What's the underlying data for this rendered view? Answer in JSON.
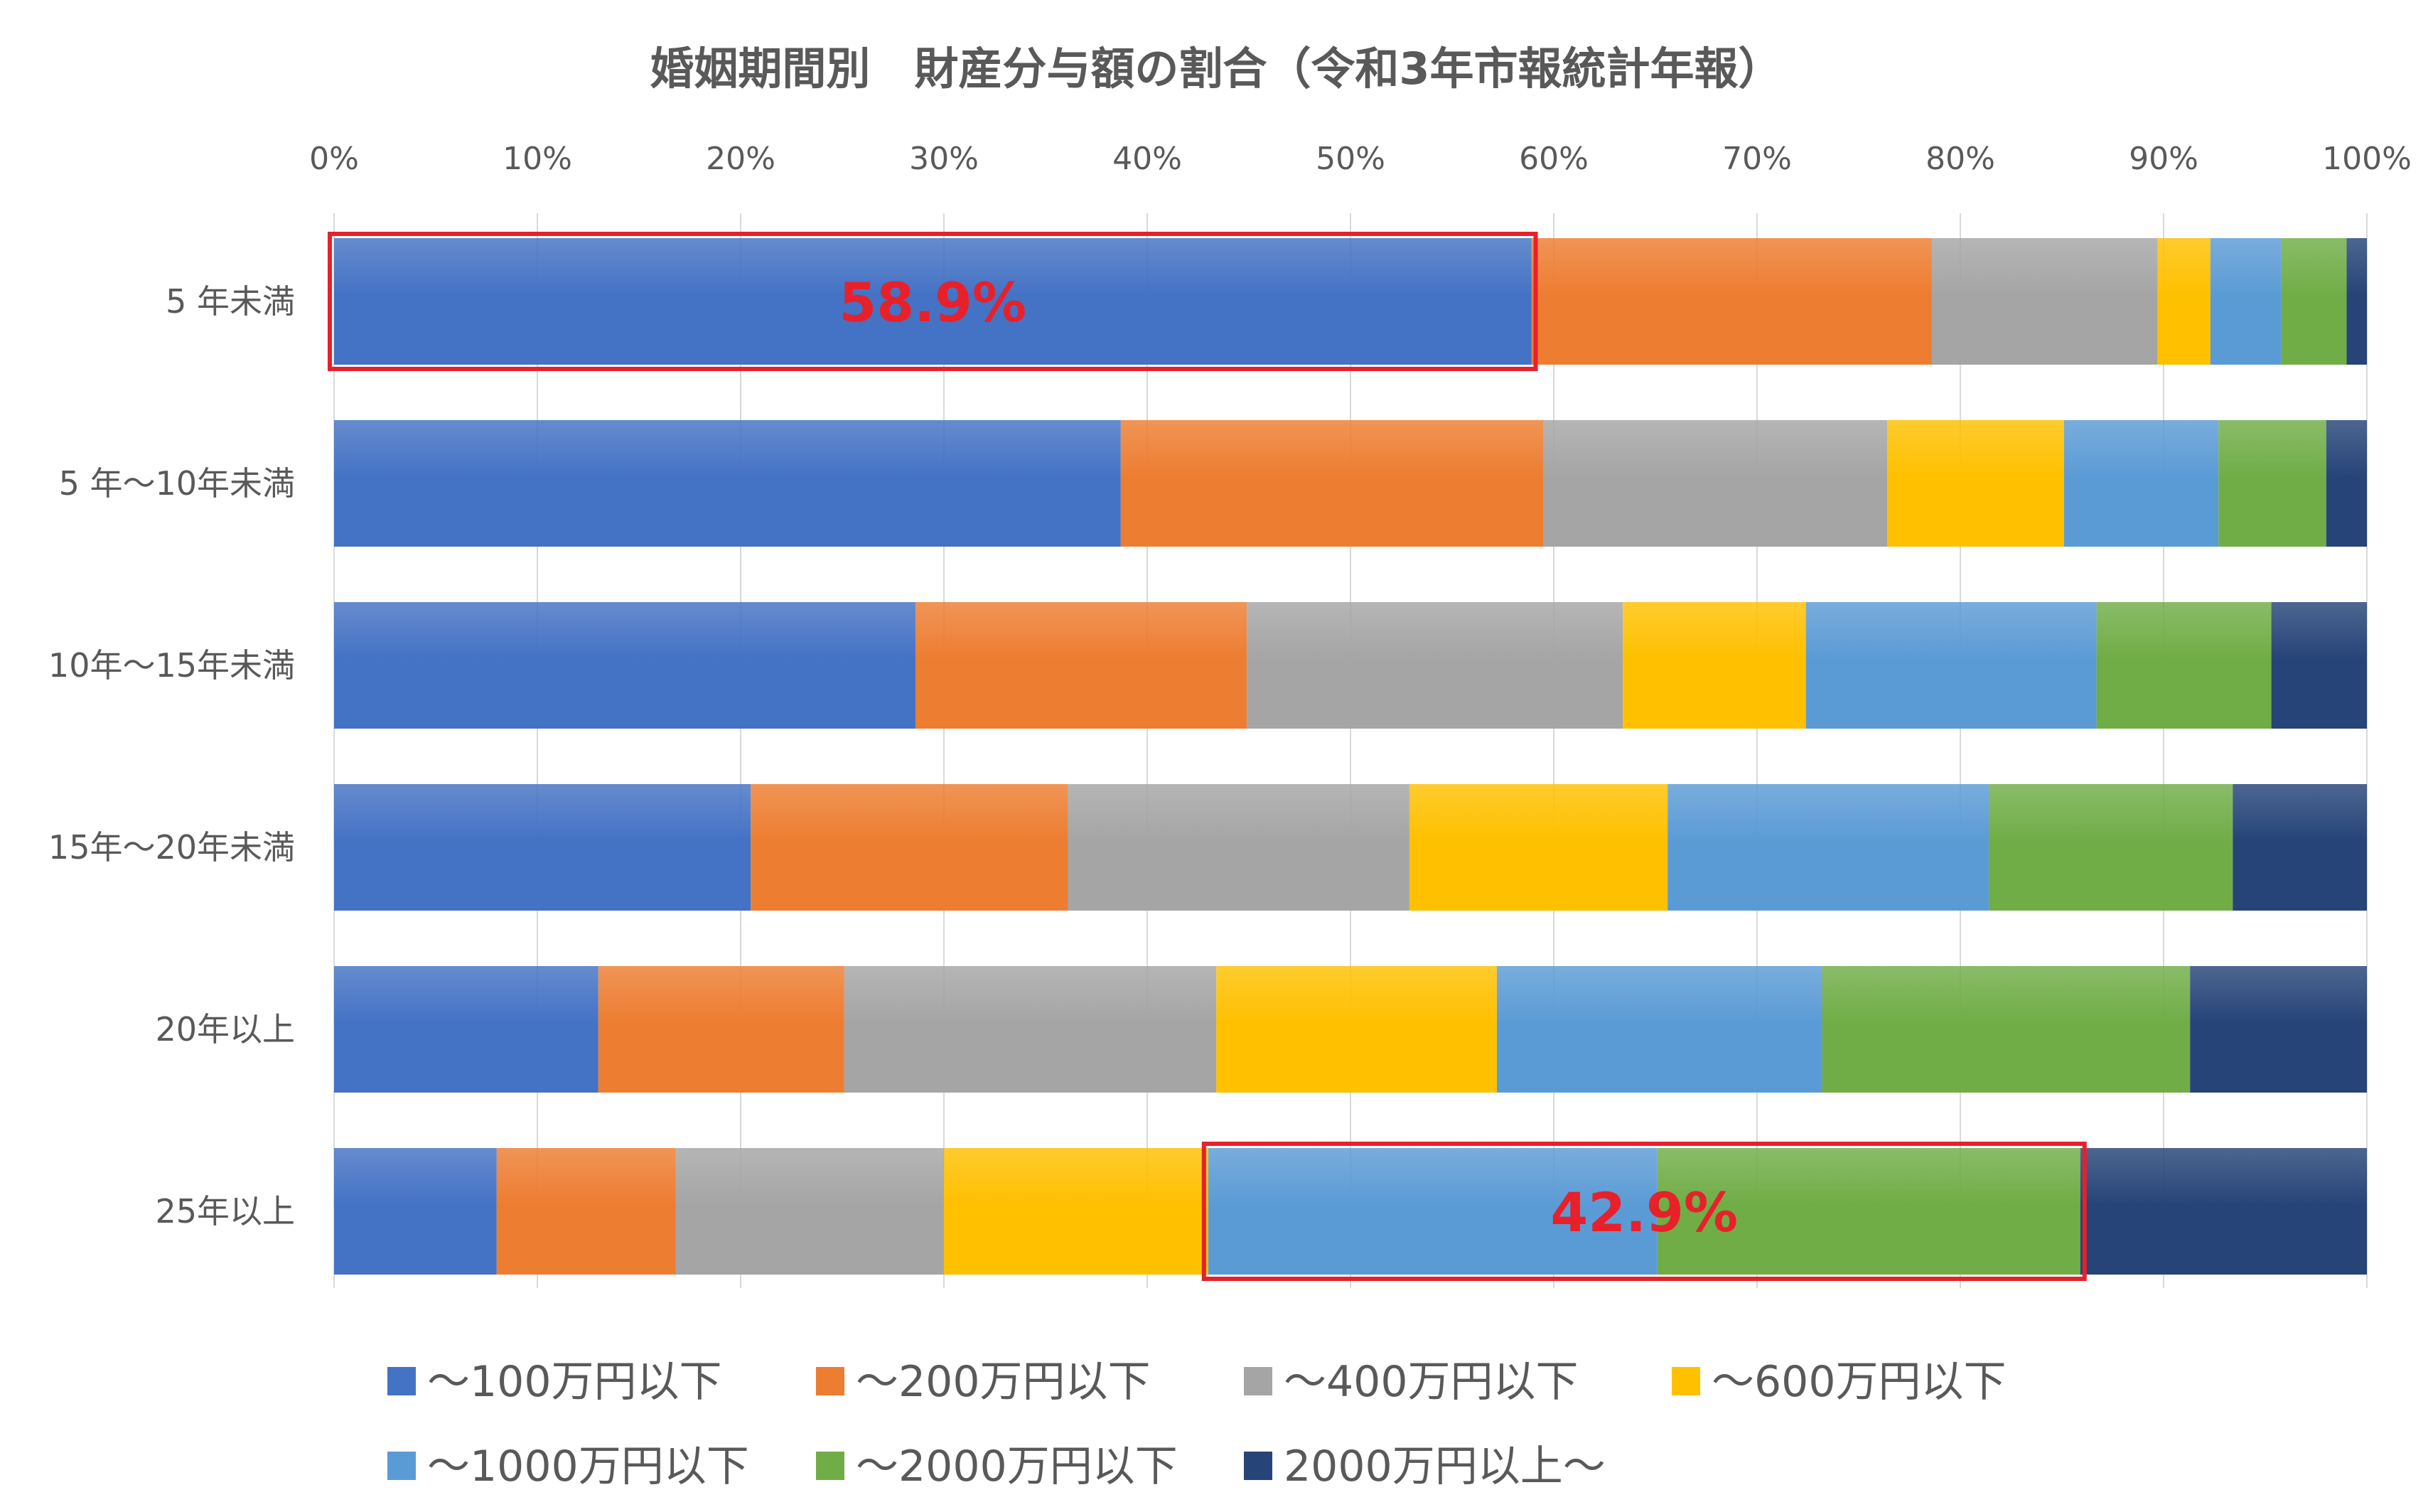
{
  "chart_data": {
    "type": "bar",
    "orientation": "horizontal",
    "stacked": "percent",
    "title": "婚姻期間別　財産分与額の割合（令和3年市報統計年報）",
    "xlim": [
      0,
      100
    ],
    "x_ticks": [
      "0%",
      "10%",
      "20%",
      "30%",
      "40%",
      "50%",
      "60%",
      "70%",
      "80%",
      "90%",
      "100%"
    ],
    "grid": true,
    "legend_position": "bottom",
    "categories": [
      "5 年未満",
      "5 年～10年未満",
      "10年～15年未満",
      "15年～20年未満",
      "20年以上",
      "25年以上"
    ],
    "series": [
      {
        "name": "～100万円以下",
        "color": "#4472C4",
        "values": [
          58.9,
          38.7,
          28.6,
          20.5,
          13.0,
          8.0
        ]
      },
      {
        "name": "～200万円以下",
        "color": "#ED7D31",
        "values": [
          19.7,
          20.8,
          16.3,
          15.6,
          12.1,
          8.8
        ]
      },
      {
        "name": "～400万円以下",
        "color": "#A5A5A5",
        "values": [
          11.1,
          16.9,
          18.5,
          16.8,
          18.3,
          13.2
        ]
      },
      {
        "name": "～600万円以下",
        "color": "#FFC000",
        "values": [
          2.6,
          8.7,
          9.0,
          12.7,
          13.8,
          13.0
        ]
      },
      {
        "name": "～1000万円以下",
        "color": "#5B9BD5",
        "values": [
          3.5,
          7.6,
          14.3,
          15.8,
          16.0,
          22.1
        ]
      },
      {
        "name": "～2000万円以下",
        "color": "#70AD47",
        "values": [
          3.2,
          5.3,
          8.6,
          12.0,
          18.1,
          20.8
        ]
      },
      {
        "name": "2000万円以上～",
        "color": "#264478",
        "values": [
          1.0,
          2.0,
          4.7,
          6.6,
          8.7,
          14.1
        ]
      }
    ],
    "annotations": [
      {
        "category_index": 0,
        "from_series": 0,
        "to_series": 0,
        "label": "58.9%",
        "color": "#E8202A"
      },
      {
        "category_index": 5,
        "from_series": 4,
        "to_series": 5,
        "label": "42.9%",
        "color": "#E8202A"
      }
    ]
  }
}
